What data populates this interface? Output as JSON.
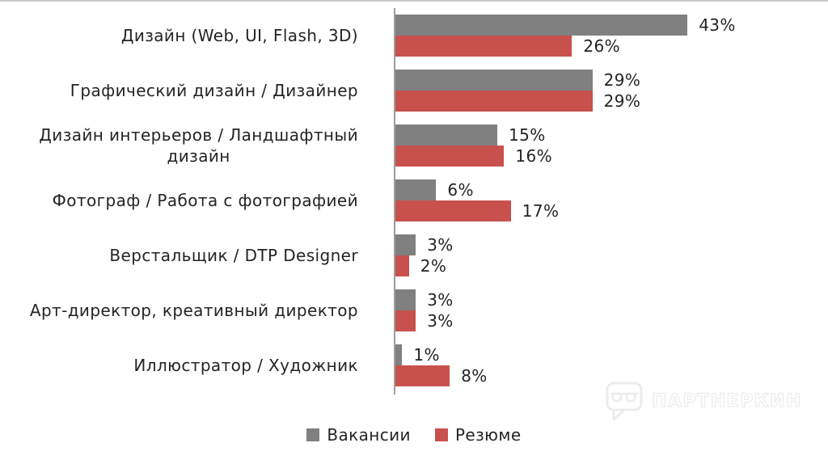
{
  "chart_data": {
    "type": "bar",
    "orientation": "horizontal",
    "title": "",
    "xlabel": "",
    "ylabel": "",
    "unit": "%",
    "xlim": [
      0,
      50
    ],
    "grid": false,
    "legend_position": "bottom",
    "categories": [
      "Дизайн (Web, UI, Flash, 3D)",
      "Графический дизайн / Дизайнер",
      "Дизайн интерьеров  / Ландшафтный\nдизайн",
      "Фотограф / Работа с фотографией",
      "Верстальщик / DTP Designer",
      "Арт-директор,  креативный директор",
      "Иллюстратор / Художник"
    ],
    "series": [
      {
        "name": "Вакансии",
        "color": "#808080",
        "values": [
          43,
          29,
          15,
          6,
          3,
          3,
          1
        ]
      },
      {
        "name": "Резюме",
        "color": "#c8504d",
        "values": [
          26,
          29,
          16,
          17,
          2,
          3,
          8
        ]
      }
    ],
    "data_labels": [
      [
        "43%",
        "26%"
      ],
      [
        "29%",
        "29%"
      ],
      [
        "15%",
        "16%"
      ],
      [
        "6%",
        "17%"
      ],
      [
        "3%",
        "2%"
      ],
      [
        "3%",
        "3%"
      ],
      [
        "1%",
        "8%"
      ]
    ]
  },
  "colors": {
    "axis_line": "#9d9d9d",
    "top_border": "#c6cacc",
    "text": "#242424"
  },
  "watermark": {
    "text": "ПАРТНЕРКИН",
    "logo": "speech-bubble-glasses-icon"
  }
}
